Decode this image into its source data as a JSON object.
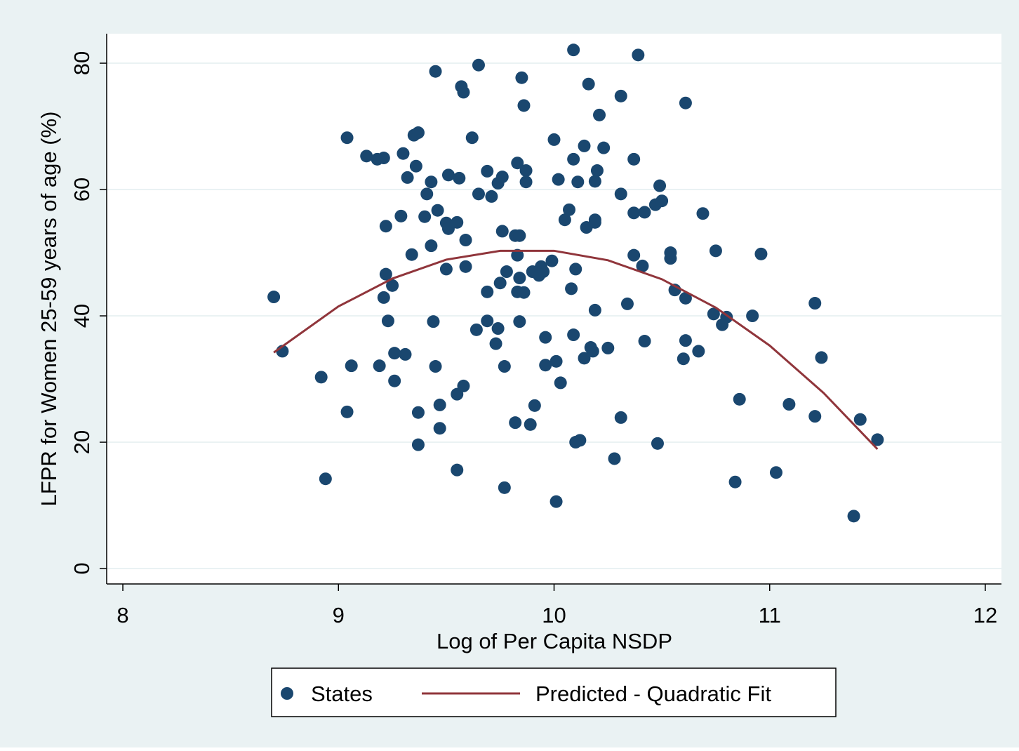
{
  "chart_data": {
    "type": "scatter",
    "x_label": "Log of Per Capita NSDP",
    "y_label": "LFPR for Women 25-59 years of age (%)",
    "xlim": [
      7.925,
      12.075
    ],
    "ylim": [
      -2.44,
      84.67
    ],
    "xticks": [
      8,
      9,
      10,
      11,
      12
    ],
    "yticks": [
      0,
      20,
      40,
      60,
      80
    ],
    "grid": true,
    "series": [
      {
        "name": "States",
        "type": "scatter",
        "color": "#1a476f",
        "x": [
          8.7,
          8.74,
          8.92,
          8.94,
          9.04,
          9.04,
          9.06,
          9.13,
          9.18,
          9.21,
          9.19,
          9.21,
          9.22,
          9.22,
          9.23,
          9.25,
          9.26,
          9.26,
          9.29,
          9.3,
          9.31,
          9.32,
          9.34,
          9.35,
          9.37,
          9.36,
          9.37,
          9.37,
          9.4,
          9.41,
          9.43,
          9.43,
          9.44,
          9.45,
          9.45,
          9.46,
          9.47,
          9.47,
          9.5,
          9.51,
          9.51,
          9.5,
          9.55,
          9.55,
          9.56,
          9.55,
          9.57,
          9.58,
          9.58,
          9.59,
          9.59,
          9.62,
          9.64,
          9.65,
          9.65,
          9.69,
          9.69,
          9.69,
          9.71,
          9.73,
          9.74,
          9.74,
          9.75,
          9.76,
          9.76,
          9.77,
          9.77,
          9.78,
          9.82,
          9.83,
          9.82,
          9.83,
          9.83,
          9.84,
          9.84,
          9.84,
          9.85,
          9.86,
          9.86,
          9.87,
          9.87,
          9.89,
          9.9,
          9.91,
          9.93,
          9.94,
          9.95,
          9.96,
          9.96,
          9.99,
          10.0,
          10.01,
          10.01,
          10.02,
          10.03,
          10.05,
          10.07,
          10.08,
          10.09,
          10.09,
          10.09,
          10.1,
          10.1,
          10.11,
          10.12,
          10.14,
          10.14,
          10.15,
          10.16,
          10.17,
          10.18,
          10.19,
          10.19,
          10.19,
          10.2,
          10.19,
          10.21,
          10.23,
          10.25,
          10.28,
          10.31,
          10.31,
          10.31,
          10.34,
          10.37,
          10.37,
          10.37,
          10.39,
          10.41,
          10.42,
          10.42,
          10.47,
          10.48,
          10.49,
          10.5,
          10.54,
          10.54,
          10.56,
          10.6,
          10.61,
          10.61,
          10.61,
          10.67,
          10.69,
          10.74,
          10.75,
          10.78,
          10.8,
          10.84,
          10.86,
          10.92,
          10.96,
          11.03,
          11.09,
          11.21,
          11.21,
          11.24,
          11.39,
          11.42,
          11.5
        ],
        "values": [
          43.0,
          34.4,
          30.3,
          14.2,
          68.2,
          24.8,
          32.1,
          65.3,
          64.8,
          65.0,
          32.1,
          42.9,
          46.6,
          54.2,
          39.2,
          44.8,
          34.1,
          29.7,
          55.8,
          65.7,
          33.9,
          61.9,
          49.7,
          68.6,
          69.0,
          63.7,
          24.7,
          19.6,
          55.7,
          59.3,
          61.2,
          51.1,
          39.1,
          78.7,
          32.0,
          56.7,
          25.9,
          22.2,
          54.7,
          53.8,
          62.3,
          47.4,
          15.6,
          54.8,
          61.8,
          27.6,
          76.3,
          75.4,
          28.9,
          47.8,
          52.0,
          68.2,
          37.8,
          59.3,
          79.7,
          62.9,
          39.2,
          43.8,
          58.9,
          35.6,
          61.0,
          38.0,
          45.2,
          62.0,
          53.4,
          32.0,
          12.8,
          47.0,
          52.7,
          64.2,
          23.1,
          43.8,
          49.6,
          52.7,
          39.1,
          46.0,
          77.7,
          73.3,
          43.7,
          63.0,
          61.2,
          22.8,
          47.0,
          25.8,
          46.4,
          47.8,
          47.0,
          36.6,
          32.2,
          48.7,
          67.9,
          10.6,
          32.8,
          61.6,
          29.4,
          55.2,
          56.8,
          44.3,
          64.8,
          82.1,
          37.0,
          47.4,
          20.0,
          61.2,
          20.3,
          66.9,
          33.3,
          54.0,
          76.7,
          35.0,
          34.4,
          55.2,
          54.8,
          61.3,
          63.0,
          40.9,
          71.8,
          66.6,
          34.9,
          17.4,
          59.3,
          23.9,
          74.8,
          41.9,
          64.8,
          49.6,
          56.3,
          81.3,
          47.9,
          36.0,
          56.4,
          57.6,
          19.8,
          60.6,
          58.2,
          49.1,
          50.0,
          44.1,
          33.2,
          36.1,
          42.8,
          73.7,
          34.4,
          56.2,
          40.3,
          50.3,
          38.6,
          39.8,
          13.7,
          26.8,
          40.0,
          49.8,
          15.2,
          26.0,
          24.1,
          42.0,
          33.4,
          8.3,
          23.6,
          20.4
        ]
      },
      {
        "name": "Predicted - Quadratic Fit",
        "type": "line",
        "color": "#90353b",
        "x": [
          8.7,
          9.0,
          9.25,
          9.5,
          9.75,
          10,
          10.25,
          10.5,
          10.75,
          11,
          11.25,
          11.5
        ],
        "values": [
          34.2,
          41.5,
          45.9,
          48.9,
          50.3,
          50.3,
          48.8,
          45.8,
          41.3,
          35.3,
          27.8,
          18.9
        ]
      }
    ]
  }
}
